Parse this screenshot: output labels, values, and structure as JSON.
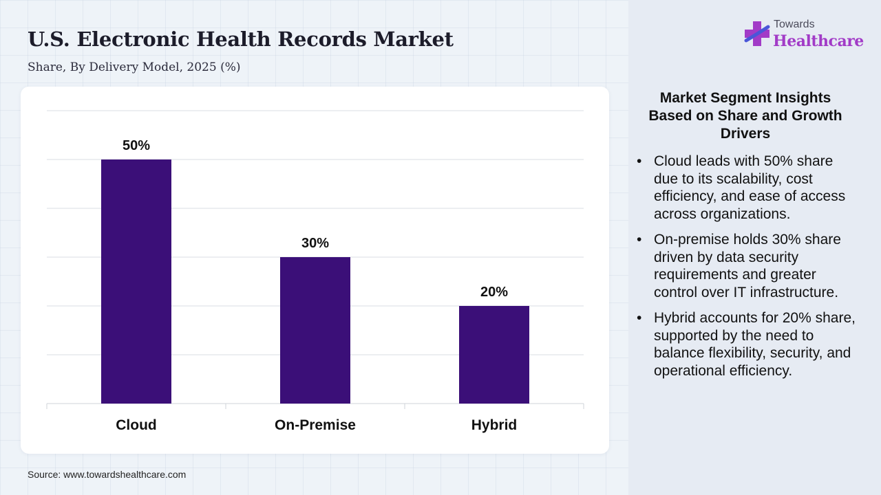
{
  "header": {
    "title": "U.S. Electronic Health Records Market",
    "subtitle": "Share, By Delivery Model, 2025 (%)"
  },
  "chart_data": {
    "type": "bar",
    "title": "U.S. Electronic Health Records Market",
    "subtitle": "Share, By Delivery Model, 2025 (%)",
    "categories": [
      "Cloud",
      "On-Premise",
      "Hybrid"
    ],
    "values": [
      50,
      30,
      20
    ],
    "data_labels": [
      "50%",
      "30%",
      "20%"
    ],
    "unit": "%",
    "ylim": [
      0,
      60
    ],
    "grid": true,
    "legend": "none",
    "bar_color": "#3b0f78"
  },
  "logo": {
    "top_text": "Towards",
    "main_text": "Healthcare"
  },
  "insights": {
    "title": "Market Segment Insights Based on Share and Growth Drivers",
    "items": [
      "Cloud leads with 50% share due to its scalability, cost efficiency, and ease of access across organizations.",
      "On-premise holds 30% share driven by data security requirements and greater control over IT infrastructure.",
      "Hybrid accounts for 20% share, supported by the need to balance flexibility, security, and operational efficiency."
    ]
  },
  "source": "Source: www.towardshealthcare.com",
  "colors": {
    "bar": "#3b0f78",
    "logo_purple": "#a23bc7",
    "logo_blue": "#4a56d8",
    "panel_bg": "#e6ebf3"
  }
}
